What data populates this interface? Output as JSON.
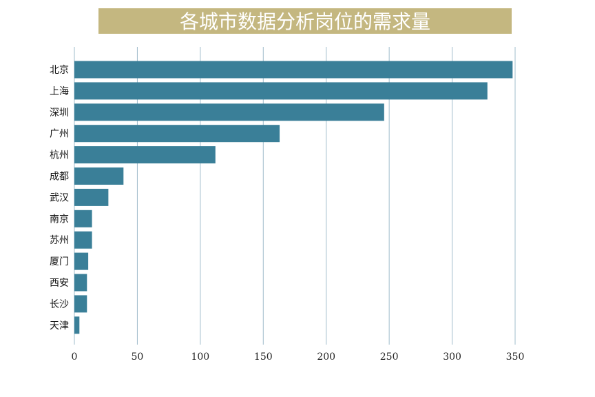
{
  "chart_data": {
    "type": "bar",
    "orientation": "horizontal",
    "title": "各城市数据分析岗位的需求量",
    "xlabel": "",
    "ylabel": "",
    "categories": [
      "北京",
      "上海",
      "深圳",
      "广州",
      "杭州",
      "成都",
      "武汉",
      "南京",
      "苏州",
      "厦门",
      "西安",
      "长沙",
      "天津"
    ],
    "values": [
      348,
      328,
      246,
      163,
      112,
      39,
      27,
      14,
      14,
      11,
      10,
      10,
      4
    ],
    "xlim": [
      0,
      350
    ],
    "xticks": [
      "0",
      "50",
      "100",
      "150",
      "200",
      "250",
      "300",
      "350"
    ],
    "grid": "vertical",
    "colors": {
      "bar": "#3a7f98",
      "title_background": "#c4b780",
      "title_text": "#ffffff",
      "grid": "#9fbccb"
    }
  }
}
